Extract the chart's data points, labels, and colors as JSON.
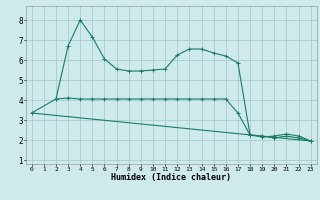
{
  "xlabel": "Humidex (Indice chaleur)",
  "bg_color": "#ceeaea",
  "grid_color": "#aacccc",
  "line_color": "#1a7a6a",
  "xlim": [
    -0.5,
    23.5
  ],
  "ylim": [
    0.8,
    8.7
  ],
  "yticks": [
    1,
    2,
    3,
    4,
    5,
    6,
    7,
    8
  ],
  "xticks": [
    0,
    1,
    2,
    3,
    4,
    5,
    6,
    7,
    8,
    9,
    10,
    11,
    12,
    13,
    14,
    15,
    16,
    17,
    18,
    19,
    20,
    21,
    22,
    23
  ],
  "line_top_x": [
    2,
    3,
    4,
    5,
    6,
    7,
    8,
    9,
    10,
    11,
    12,
    13,
    14,
    15,
    16,
    17,
    18,
    19,
    20,
    21,
    22,
    23
  ],
  "line_top_y": [
    4.05,
    6.7,
    8.0,
    7.15,
    6.05,
    5.55,
    5.45,
    5.45,
    5.5,
    5.55,
    6.25,
    6.55,
    6.55,
    6.35,
    6.2,
    5.85,
    2.25,
    2.15,
    2.2,
    2.3,
    2.2,
    1.95
  ],
  "line_mid_x": [
    0,
    2,
    3,
    4,
    5,
    6,
    7,
    8,
    9,
    10,
    11,
    12,
    13,
    14,
    15,
    16,
    17,
    18,
    19,
    20,
    21,
    22,
    23
  ],
  "line_mid_y": [
    3.35,
    4.05,
    4.1,
    4.05,
    4.05,
    4.05,
    4.05,
    4.05,
    4.05,
    4.05,
    4.05,
    4.05,
    4.05,
    4.05,
    4.05,
    4.05,
    3.35,
    2.25,
    2.2,
    2.1,
    2.2,
    2.1,
    1.95
  ],
  "line_trend_x": [
    0,
    23
  ],
  "line_trend_y": [
    3.35,
    1.95
  ]
}
